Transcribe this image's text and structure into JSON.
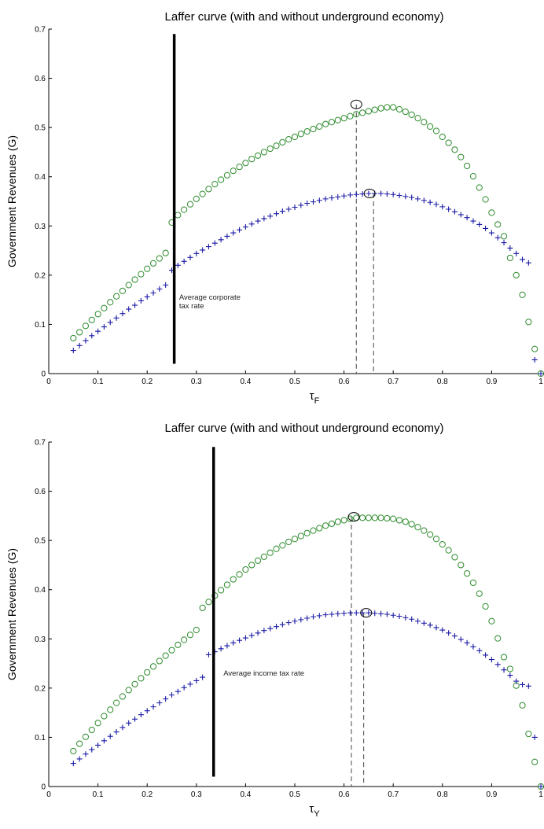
{
  "chart_data": [
    {
      "type": "scatter",
      "title": "Laffer curve (with and without underground economy)",
      "ylabel": "Government Revenues (G)",
      "xlabel_symbol": "τ",
      "xlabel_sub": "F",
      "xlim": [
        0,
        1
      ],
      "ylim": [
        0,
        0.7
      ],
      "xticks": [
        "0",
        "0.1",
        "0.2",
        "0.3",
        "0.4",
        "0.5",
        "0.6",
        "0.7",
        "0.8",
        "0.9",
        "1"
      ],
      "yticks": [
        "0",
        "0.1",
        "0.2",
        "0.3",
        "0.4",
        "0.5",
        "0.6",
        "0.7"
      ],
      "series": [
        {
          "marker": "circle",
          "color": "#2e8b2e",
          "x": [
            0.05,
            0.0625,
            0.075,
            0.0875,
            0.1,
            0.1125,
            0.125,
            0.1375,
            0.15,
            0.1625,
            0.175,
            0.1875,
            0.2,
            0.2125,
            0.225,
            0.2375,
            0.25,
            0.2625,
            0.275,
            0.2875,
            0.3,
            0.3125,
            0.325,
            0.3375,
            0.35,
            0.3625,
            0.375,
            0.3875,
            0.4,
            0.4125,
            0.425,
            0.4375,
            0.45,
            0.4625,
            0.475,
            0.4875,
            0.5,
            0.5125,
            0.525,
            0.5375,
            0.55,
            0.5625,
            0.575,
            0.5875,
            0.6,
            0.6125,
            0.625,
            0.6375,
            0.65,
            0.6625,
            0.675,
            0.6875,
            0.7,
            0.7125,
            0.725,
            0.7375,
            0.75,
            0.7625,
            0.775,
            0.7875,
            0.8,
            0.8125,
            0.825,
            0.8375,
            0.85,
            0.8625,
            0.875,
            0.8875,
            0.9,
            0.9125,
            0.925,
            0.9375,
            0.95,
            0.9625,
            0.975,
            0.9875,
            1.0
          ],
          "y": [
            0.072,
            0.084,
            0.097,
            0.109,
            0.121,
            0.133,
            0.145,
            0.157,
            0.168,
            0.18,
            0.191,
            0.202,
            0.213,
            0.224,
            0.234,
            0.245,
            0.307,
            0.322,
            0.333,
            0.344,
            0.355,
            0.365,
            0.375,
            0.385,
            0.394,
            0.403,
            0.412,
            0.42,
            0.428,
            0.436,
            0.443,
            0.45,
            0.457,
            0.463,
            0.47,
            0.476,
            0.481,
            0.487,
            0.492,
            0.497,
            0.502,
            0.507,
            0.511,
            0.515,
            0.519,
            0.523,
            0.527,
            0.53,
            0.533,
            0.536,
            0.539,
            0.541,
            0.541,
            0.537,
            0.532,
            0.526,
            0.519,
            0.511,
            0.502,
            0.493,
            0.481,
            0.469,
            0.455,
            0.44,
            0.422,
            0.401,
            0.378,
            0.354,
            0.327,
            0.303,
            0.279,
            0.235,
            0.2,
            0.16,
            0.105,
            0.05,
            0.0
          ]
        },
        {
          "marker": "plus",
          "color": "#1a1aa6",
          "x": [
            0.05,
            0.0625,
            0.075,
            0.0875,
            0.1,
            0.1125,
            0.125,
            0.1375,
            0.15,
            0.1625,
            0.175,
            0.1875,
            0.2,
            0.2125,
            0.225,
            0.2375,
            0.25,
            0.2625,
            0.275,
            0.2875,
            0.3,
            0.3125,
            0.325,
            0.3375,
            0.35,
            0.3625,
            0.375,
            0.3875,
            0.4,
            0.4125,
            0.425,
            0.4375,
            0.45,
            0.4625,
            0.475,
            0.4875,
            0.5,
            0.5125,
            0.525,
            0.5375,
            0.55,
            0.5625,
            0.575,
            0.5875,
            0.6,
            0.6125,
            0.625,
            0.6375,
            0.65,
            0.6625,
            0.675,
            0.6875,
            0.7,
            0.7125,
            0.725,
            0.7375,
            0.75,
            0.7625,
            0.775,
            0.7875,
            0.8,
            0.8125,
            0.825,
            0.8375,
            0.85,
            0.8625,
            0.875,
            0.8875,
            0.9,
            0.9125,
            0.925,
            0.9375,
            0.95,
            0.9625,
            0.975,
            0.9875,
            1.0
          ],
          "y": [
            0.047,
            0.057,
            0.067,
            0.077,
            0.086,
            0.095,
            0.104,
            0.113,
            0.122,
            0.131,
            0.139,
            0.148,
            0.156,
            0.164,
            0.172,
            0.18,
            0.21,
            0.22,
            0.228,
            0.236,
            0.244,
            0.251,
            0.258,
            0.265,
            0.272,
            0.279,
            0.286,
            0.292,
            0.298,
            0.304,
            0.31,
            0.315,
            0.32,
            0.325,
            0.33,
            0.334,
            0.338,
            0.342,
            0.346,
            0.349,
            0.352,
            0.355,
            0.357,
            0.359,
            0.361,
            0.363,
            0.364,
            0.365,
            0.366,
            0.366,
            0.366,
            0.365,
            0.364,
            0.362,
            0.36,
            0.358,
            0.355,
            0.352,
            0.348,
            0.344,
            0.339,
            0.334,
            0.329,
            0.323,
            0.317,
            0.31,
            0.303,
            0.295,
            0.286,
            0.276,
            0.266,
            0.255,
            0.244,
            0.232,
            0.225,
            0.028,
            0.0
          ]
        }
      ],
      "vline_x": 0.255,
      "vline_range": [
        0.02,
        0.69
      ],
      "peak_markers": [
        {
          "x": 0.625,
          "y": 0.547
        },
        {
          "x": 0.652,
          "y": 0.366
        }
      ],
      "dashed_lines": [
        {
          "x": 0.625,
          "y": 0.547
        },
        {
          "x": 0.66,
          "y": 0.366
        }
      ],
      "annotation": "Average corporate\ntax rate",
      "annotation_at": [
        0.265,
        0.15
      ]
    },
    {
      "type": "scatter",
      "title": "Laffer curve (with and without underground economy)",
      "ylabel": "Government Revenues (G)",
      "xlabel_symbol": "τ",
      "xlabel_sub": "Y",
      "xlim": [
        0,
        1
      ],
      "ylim": [
        0,
        0.7
      ],
      "xticks": [
        "0",
        "0.1",
        "0.2",
        "0.3",
        "0.4",
        "0.5",
        "0.6",
        "0.7",
        "0.8",
        "0.9",
        "1"
      ],
      "yticks": [
        "0",
        "0.1",
        "0.2",
        "0.3",
        "0.4",
        "0.5",
        "0.6",
        "0.7"
      ],
      "series": [
        {
          "marker": "circle",
          "color": "#2e8b2e",
          "x": [
            0.05,
            0.0625,
            0.075,
            0.0875,
            0.1,
            0.1125,
            0.125,
            0.1375,
            0.15,
            0.1625,
            0.175,
            0.1875,
            0.2,
            0.2125,
            0.225,
            0.2375,
            0.25,
            0.2625,
            0.275,
            0.2875,
            0.3,
            0.3125,
            0.325,
            0.3375,
            0.35,
            0.3625,
            0.375,
            0.3875,
            0.4,
            0.4125,
            0.425,
            0.4375,
            0.45,
            0.4625,
            0.475,
            0.4875,
            0.5,
            0.5125,
            0.525,
            0.5375,
            0.55,
            0.5625,
            0.575,
            0.5875,
            0.6,
            0.6125,
            0.625,
            0.6375,
            0.65,
            0.6625,
            0.675,
            0.6875,
            0.7,
            0.7125,
            0.725,
            0.7375,
            0.75,
            0.7625,
            0.775,
            0.7875,
            0.8,
            0.8125,
            0.825,
            0.8375,
            0.85,
            0.8625,
            0.875,
            0.8875,
            0.9,
            0.9125,
            0.925,
            0.9375,
            0.95,
            0.9625,
            0.975,
            0.9875,
            1.0
          ],
          "y": [
            0.072,
            0.087,
            0.101,
            0.115,
            0.129,
            0.143,
            0.156,
            0.17,
            0.183,
            0.196,
            0.208,
            0.22,
            0.232,
            0.244,
            0.255,
            0.266,
            0.277,
            0.288,
            0.298,
            0.308,
            0.318,
            0.363,
            0.375,
            0.388,
            0.399,
            0.41,
            0.421,
            0.431,
            0.441,
            0.45,
            0.459,
            0.467,
            0.475,
            0.483,
            0.49,
            0.497,
            0.503,
            0.509,
            0.515,
            0.52,
            0.525,
            0.53,
            0.534,
            0.538,
            0.541,
            0.544,
            0.546,
            0.546,
            0.546,
            0.546,
            0.546,
            0.545,
            0.544,
            0.541,
            0.538,
            0.533,
            0.527,
            0.52,
            0.512,
            0.503,
            0.492,
            0.48,
            0.466,
            0.45,
            0.433,
            0.414,
            0.392,
            0.366,
            0.336,
            0.301,
            0.263,
            0.239,
            0.205,
            0.165,
            0.107,
            0.05,
            0.0
          ]
        },
        {
          "marker": "plus",
          "color": "#1a1aa6",
          "x": [
            0.05,
            0.0625,
            0.075,
            0.0875,
            0.1,
            0.1125,
            0.125,
            0.1375,
            0.15,
            0.1625,
            0.175,
            0.1875,
            0.2,
            0.2125,
            0.225,
            0.2375,
            0.25,
            0.2625,
            0.275,
            0.2875,
            0.3,
            0.3125,
            0.325,
            0.3375,
            0.35,
            0.3625,
            0.375,
            0.3875,
            0.4,
            0.4125,
            0.425,
            0.4375,
            0.45,
            0.4625,
            0.475,
            0.4875,
            0.5,
            0.5125,
            0.525,
            0.5375,
            0.55,
            0.5625,
            0.575,
            0.5875,
            0.6,
            0.6125,
            0.625,
            0.6375,
            0.65,
            0.6625,
            0.675,
            0.6875,
            0.7,
            0.7125,
            0.725,
            0.7375,
            0.75,
            0.7625,
            0.775,
            0.7875,
            0.8,
            0.8125,
            0.825,
            0.8375,
            0.85,
            0.8625,
            0.875,
            0.8875,
            0.9,
            0.9125,
            0.925,
            0.9375,
            0.95,
            0.9625,
            0.975,
            0.9875,
            1.0
          ],
          "y": [
            0.047,
            0.056,
            0.066,
            0.075,
            0.084,
            0.093,
            0.102,
            0.111,
            0.12,
            0.129,
            0.137,
            0.146,
            0.154,
            0.162,
            0.17,
            0.178,
            0.186,
            0.193,
            0.201,
            0.208,
            0.215,
            0.222,
            0.268,
            0.274,
            0.28,
            0.286,
            0.292,
            0.297,
            0.302,
            0.307,
            0.312,
            0.317,
            0.321,
            0.325,
            0.329,
            0.333,
            0.336,
            0.339,
            0.342,
            0.345,
            0.347,
            0.349,
            0.35,
            0.351,
            0.352,
            0.353,
            0.353,
            0.353,
            0.353,
            0.352,
            0.351,
            0.35,
            0.348,
            0.346,
            0.343,
            0.34,
            0.336,
            0.332,
            0.328,
            0.323,
            0.318,
            0.312,
            0.306,
            0.299,
            0.292,
            0.284,
            0.276,
            0.267,
            0.258,
            0.248,
            0.237,
            0.226,
            0.214,
            0.207,
            0.204,
            0.1,
            0.0
          ]
        }
      ],
      "vline_x": 0.335,
      "vline_range": [
        0.02,
        0.69
      ],
      "peak_markers": [
        {
          "x": 0.62,
          "y": 0.548
        },
        {
          "x": 0.645,
          "y": 0.353
        }
      ],
      "dashed_lines": [
        {
          "x": 0.615,
          "y": 0.548
        },
        {
          "x": 0.64,
          "y": 0.353
        }
      ],
      "annotation": "Average income tax rate",
      "annotation_at": [
        0.355,
        0.225
      ]
    }
  ]
}
